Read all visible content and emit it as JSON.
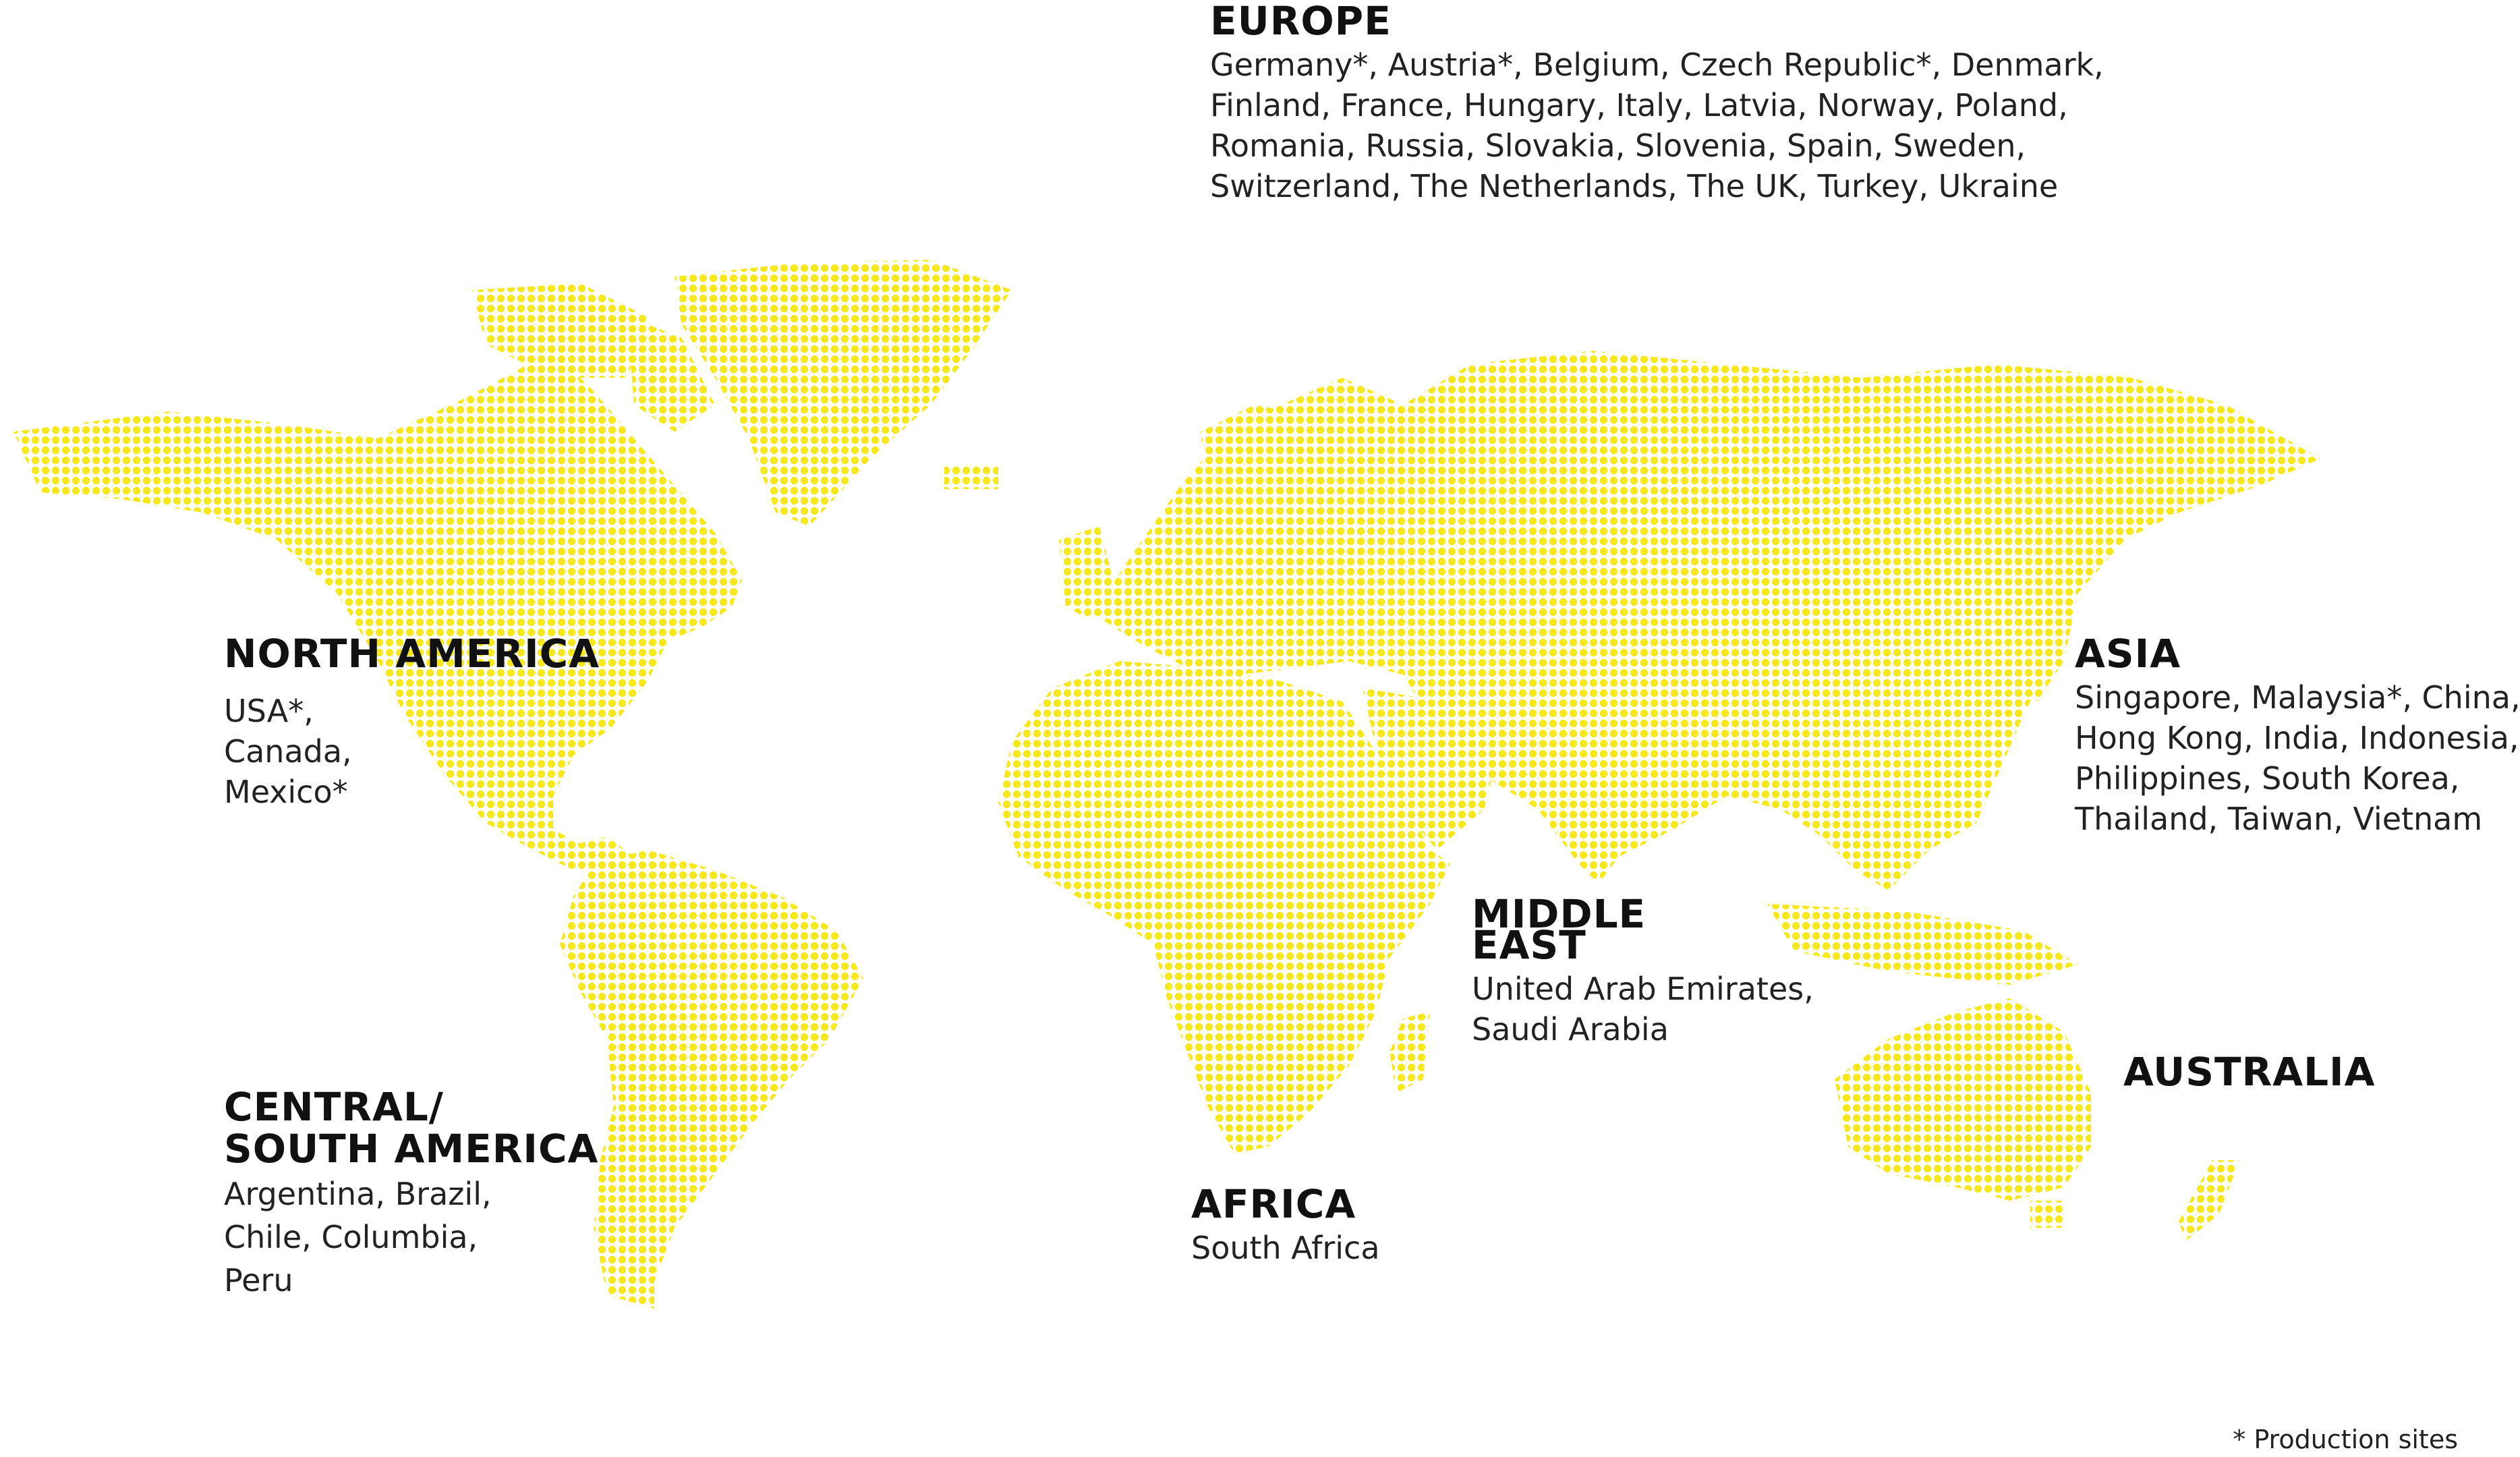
{
  "map": {
    "dot_color": "#F6E81A"
  },
  "regions": {
    "europe": {
      "name": [
        "EUROPE"
      ],
      "countries": [
        "Germany*, Austria*, Belgium, Czech Republic*, Denmark,",
        "Finland, France, Hungary, Italy, Latvia, Norway, Poland,",
        "Romania, Russia, Slovakia, Slovenia, Spain, Sweden,",
        "Switzerland, The Netherlands, The UK, Turkey, Ukraine"
      ]
    },
    "north_america": {
      "name": [
        "NORTH AMERICA"
      ],
      "countries": [
        "USA*,",
        "Canada,",
        "Mexico*"
      ]
    },
    "asia": {
      "name": [
        "ASIA"
      ],
      "countries": [
        "Singapore, Malaysia*, China,",
        "Hong Kong, India, Indonesia,",
        "Philippines, South Korea,",
        "Thailand, Taiwan, Vietnam"
      ]
    },
    "middle_east": {
      "name": [
        "MIDDLE",
        "EAST"
      ],
      "countries": [
        "United Arab Emirates,",
        "Saudi Arabia"
      ]
    },
    "australia": {
      "name": [
        "AUSTRALIA"
      ],
      "countries": []
    },
    "central_south_america": {
      "name": [
        "CENTRAL/",
        "SOUTH AMERICA"
      ],
      "countries": [
        "Argentina, Brazil,",
        "Chile, Columbia,",
        "Peru"
      ]
    },
    "africa": {
      "name": [
        "AFRICA"
      ],
      "countries": [
        "South Africa"
      ]
    }
  },
  "footnote": "* Production sites"
}
